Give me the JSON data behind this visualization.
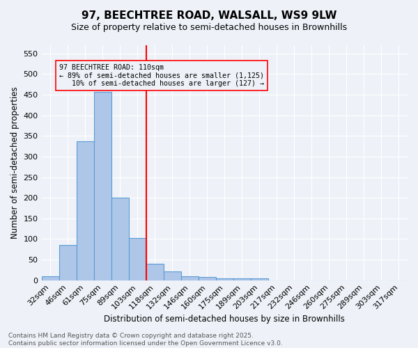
{
  "title_line1": "97, BEECHTREE ROAD, WALSALL, WS9 9LW",
  "title_line2": "Size of property relative to semi-detached houses in Brownhills",
  "xlabel": "Distribution of semi-detached houses by size in Brownhills",
  "ylabel": "Number of semi-detached properties",
  "bin_labels": [
    "32sqm",
    "46sqm",
    "61sqm",
    "75sqm",
    "89sqm",
    "103sqm",
    "118sqm",
    "132sqm",
    "146sqm",
    "160sqm",
    "175sqm",
    "189sqm",
    "203sqm",
    "217sqm",
    "232sqm",
    "246sqm",
    "260sqm",
    "275sqm",
    "289sqm",
    "303sqm",
    "317sqm"
  ],
  "bar_heights": [
    10,
    85,
    337,
    457,
    201,
    102,
    40,
    21,
    10,
    8,
    5,
    4,
    5,
    0,
    0,
    0,
    0,
    0,
    0,
    0,
    0
  ],
  "bar_color": "#aec6e8",
  "bar_edge_color": "#5b9bd5",
  "red_line_x": 6.0,
  "annotation_text": "97 BEECHTREE ROAD: 110sqm\n← 89% of semi-detached houses are smaller (1,125)\n   10% of semi-detached houses are larger (127) →",
  "ylim": [
    0,
    570
  ],
  "yticks": [
    0,
    50,
    100,
    150,
    200,
    250,
    300,
    350,
    400,
    450,
    500,
    550
  ],
  "background_color": "#eef2f8",
  "grid_color": "#ffffff",
  "footer_line1": "Contains HM Land Registry data © Crown copyright and database right 2025.",
  "footer_line2": "Contains public sector information licensed under the Open Government Licence v3.0."
}
